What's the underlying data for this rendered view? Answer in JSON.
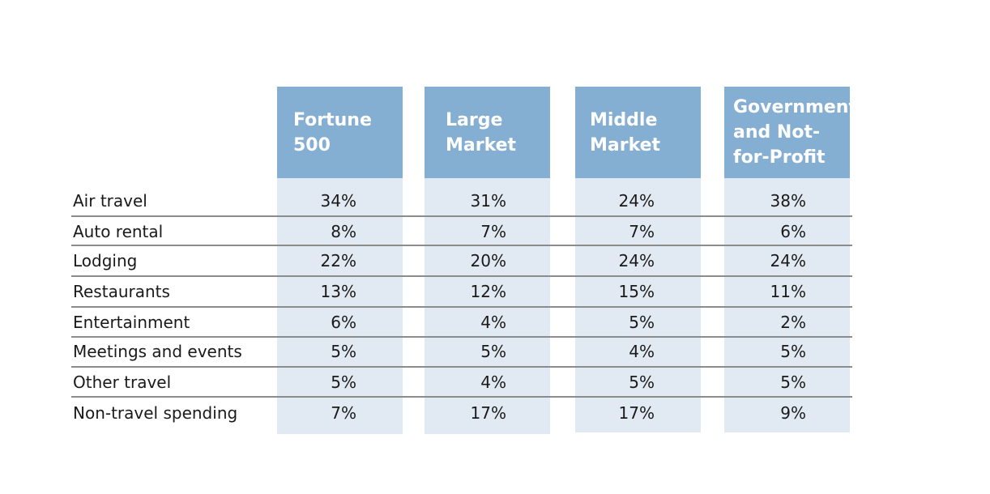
{
  "chart_data": {
    "type": "table",
    "columns": [
      {
        "name": "Fortune 500",
        "header_lines": [
          "Fortune",
          "500"
        ]
      },
      {
        "name": "Large Market",
        "header_lines": [
          "Large",
          "Market"
        ]
      },
      {
        "name": "Middle Market",
        "header_lines": [
          "Middle",
          "Market"
        ]
      },
      {
        "name": "Government and Not-for-Profit",
        "header_lines": [
          "Government",
          "and Not-",
          "for-Profit"
        ]
      }
    ],
    "rows": [
      {
        "label": "Air travel",
        "values": [
          "34%",
          "31%",
          "24%",
          "38%"
        ]
      },
      {
        "label": "Auto rental",
        "values": [
          "8%",
          "7%",
          "7%",
          "6%"
        ]
      },
      {
        "label": "Lodging",
        "values": [
          "22%",
          "20%",
          "24%",
          "24%"
        ]
      },
      {
        "label": "Restaurants",
        "values": [
          "13%",
          "12%",
          "15%",
          "11%"
        ]
      },
      {
        "label": "Entertainment",
        "values": [
          "6%",
          "4%",
          "5%",
          "2%"
        ]
      },
      {
        "label": "Meetings and events",
        "values": [
          "5%",
          "5%",
          "4%",
          "5%"
        ]
      },
      {
        "label": "Other travel",
        "values": [
          "5%",
          "4%",
          "5%",
          "5%"
        ]
      },
      {
        "label": "Non-travel spending",
        "values": [
          "7%",
          "17%",
          "17%",
          "9%"
        ]
      }
    ],
    "colors": {
      "header": "#85aed3",
      "column_fill": "#e1e9f2",
      "rule": "#8c8c8c"
    }
  }
}
